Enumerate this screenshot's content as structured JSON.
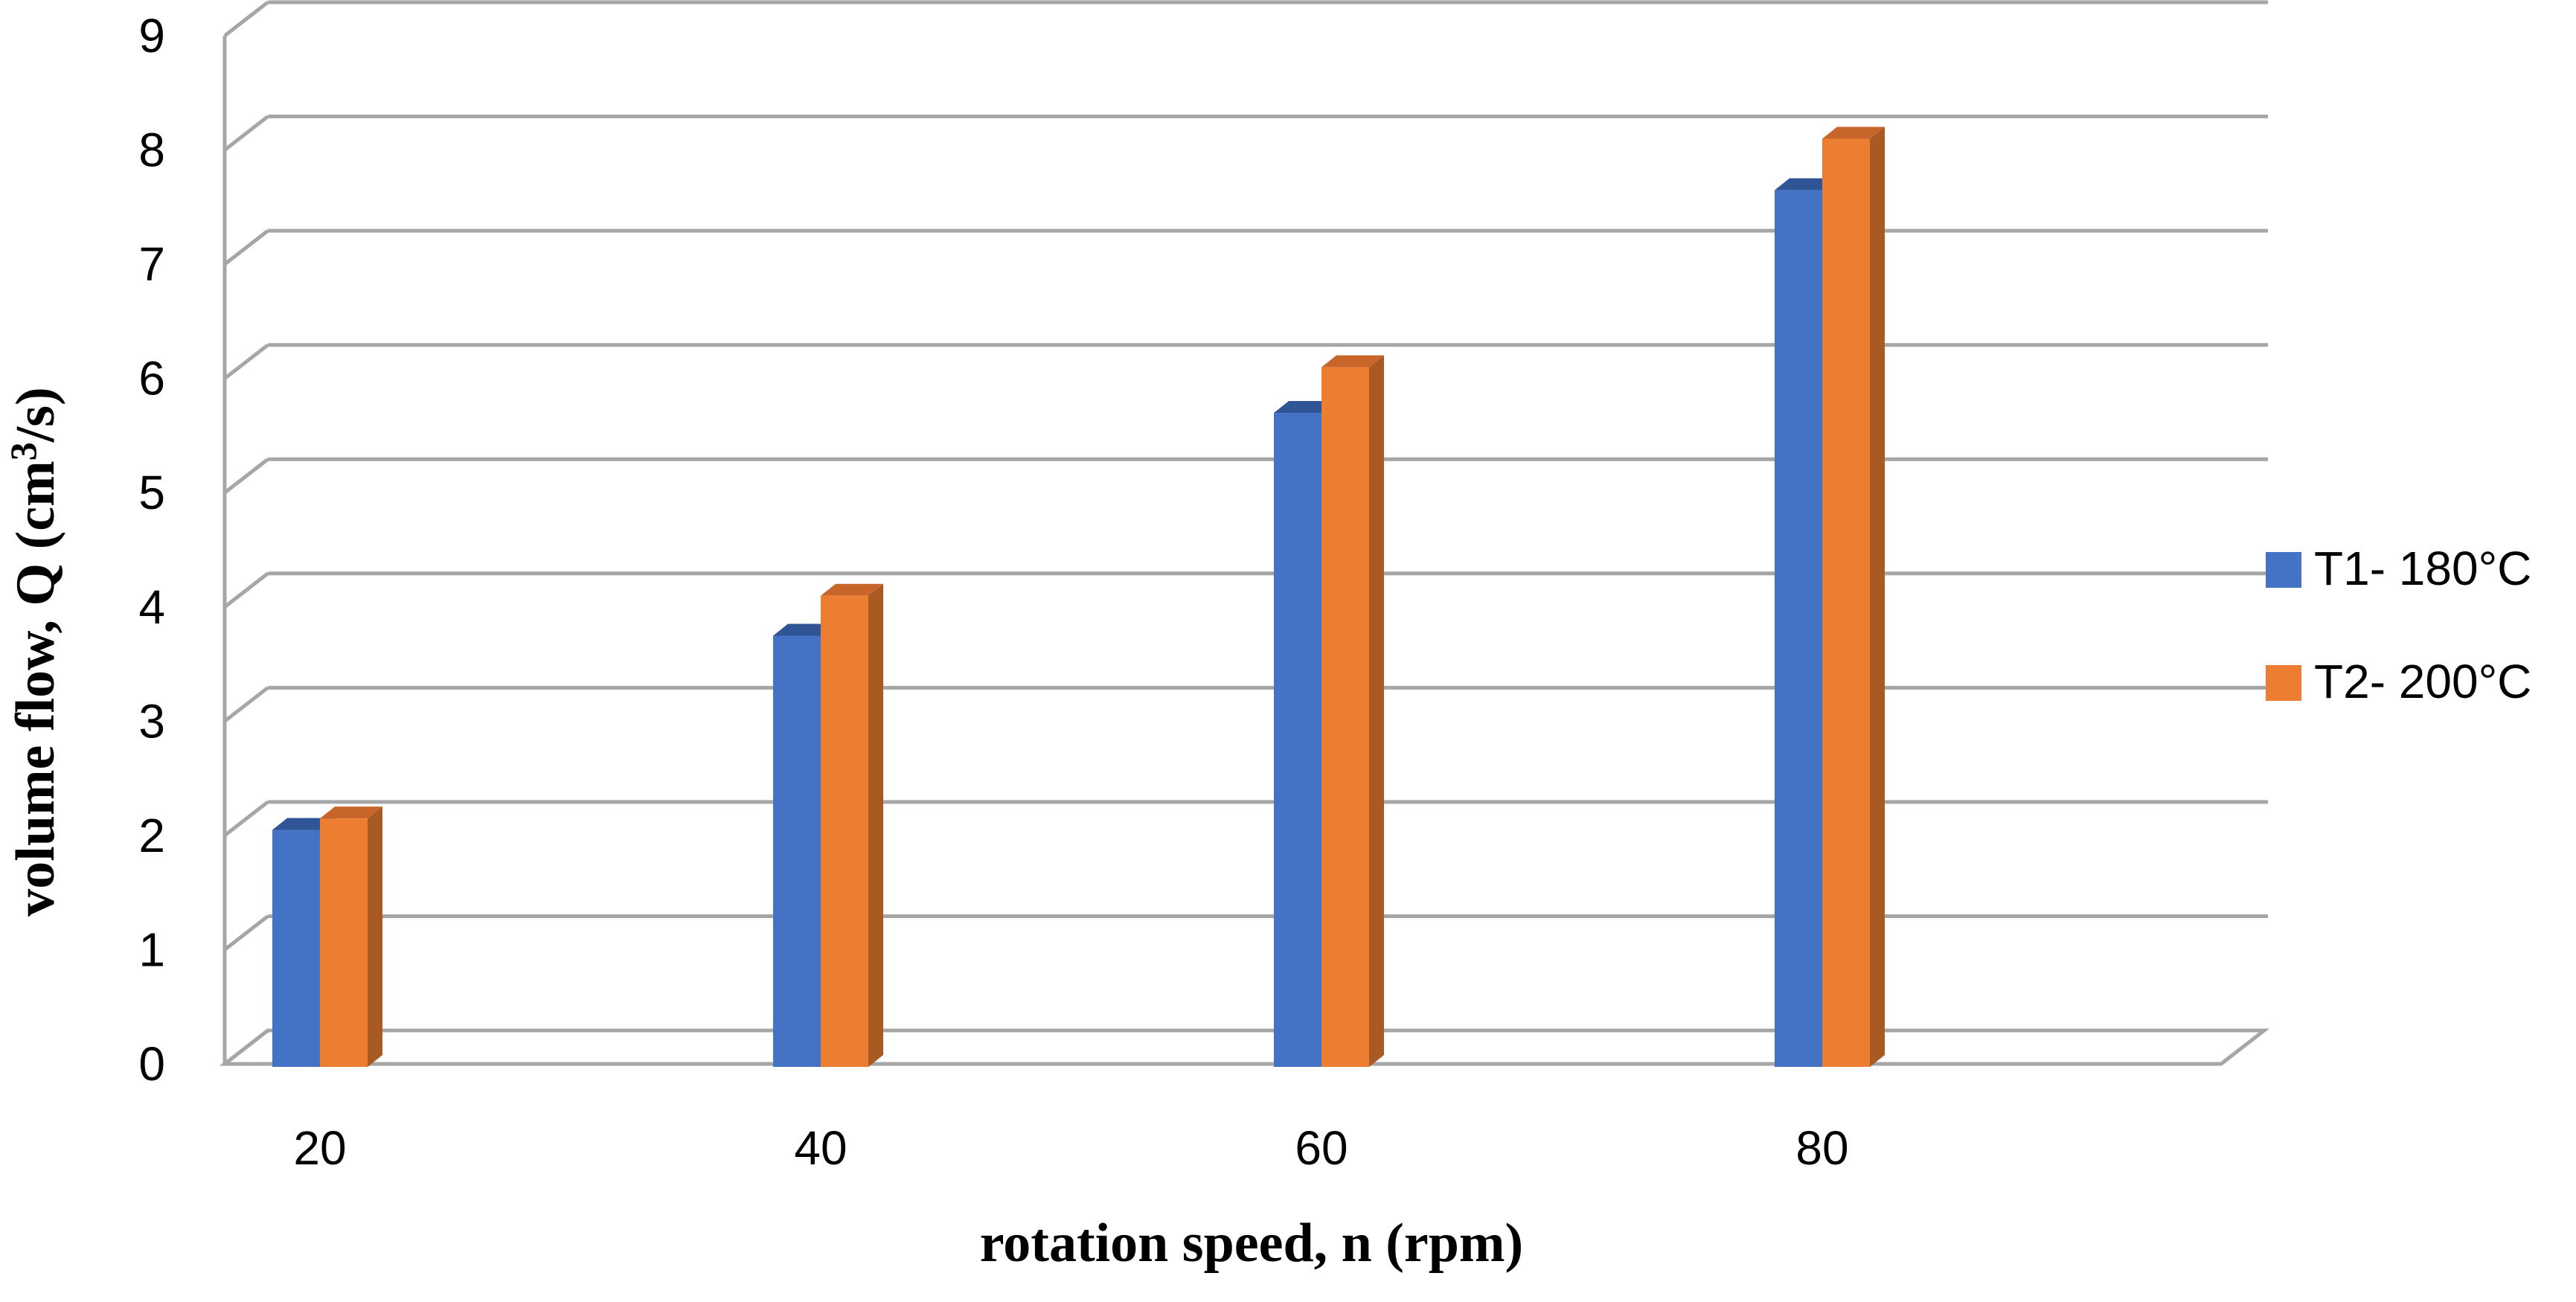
{
  "chart_data": {
    "type": "bar",
    "title": "",
    "categories": [
      "20",
      "40",
      "60",
      "80"
    ],
    "series": [
      {
        "name": "T1- 180°C",
        "values": [
          2.1,
          3.8,
          5.75,
          7.7
        ],
        "color": "#4472C4",
        "side_color": "#2F5597",
        "top_color": "#2F5597"
      },
      {
        "name": "T2- 200°C",
        "values": [
          2.2,
          4.15,
          6.15,
          8.15
        ],
        "color": "#ED7D31",
        "side_color": "#A85A22",
        "top_color": "#C8652A"
      }
    ],
    "xlabel": "rotation speed, n (rpm)",
    "ylabel_main": "volume flow, Q (cm",
    "ylabel_sup": "3",
    "ylabel_end": "/s)",
    "ylim": [
      0,
      9
    ],
    "yticks": [
      "0",
      "1",
      "2",
      "3",
      "4",
      "5",
      "6",
      "7",
      "8",
      "9"
    ],
    "grid": true,
    "legend_position": "right"
  }
}
